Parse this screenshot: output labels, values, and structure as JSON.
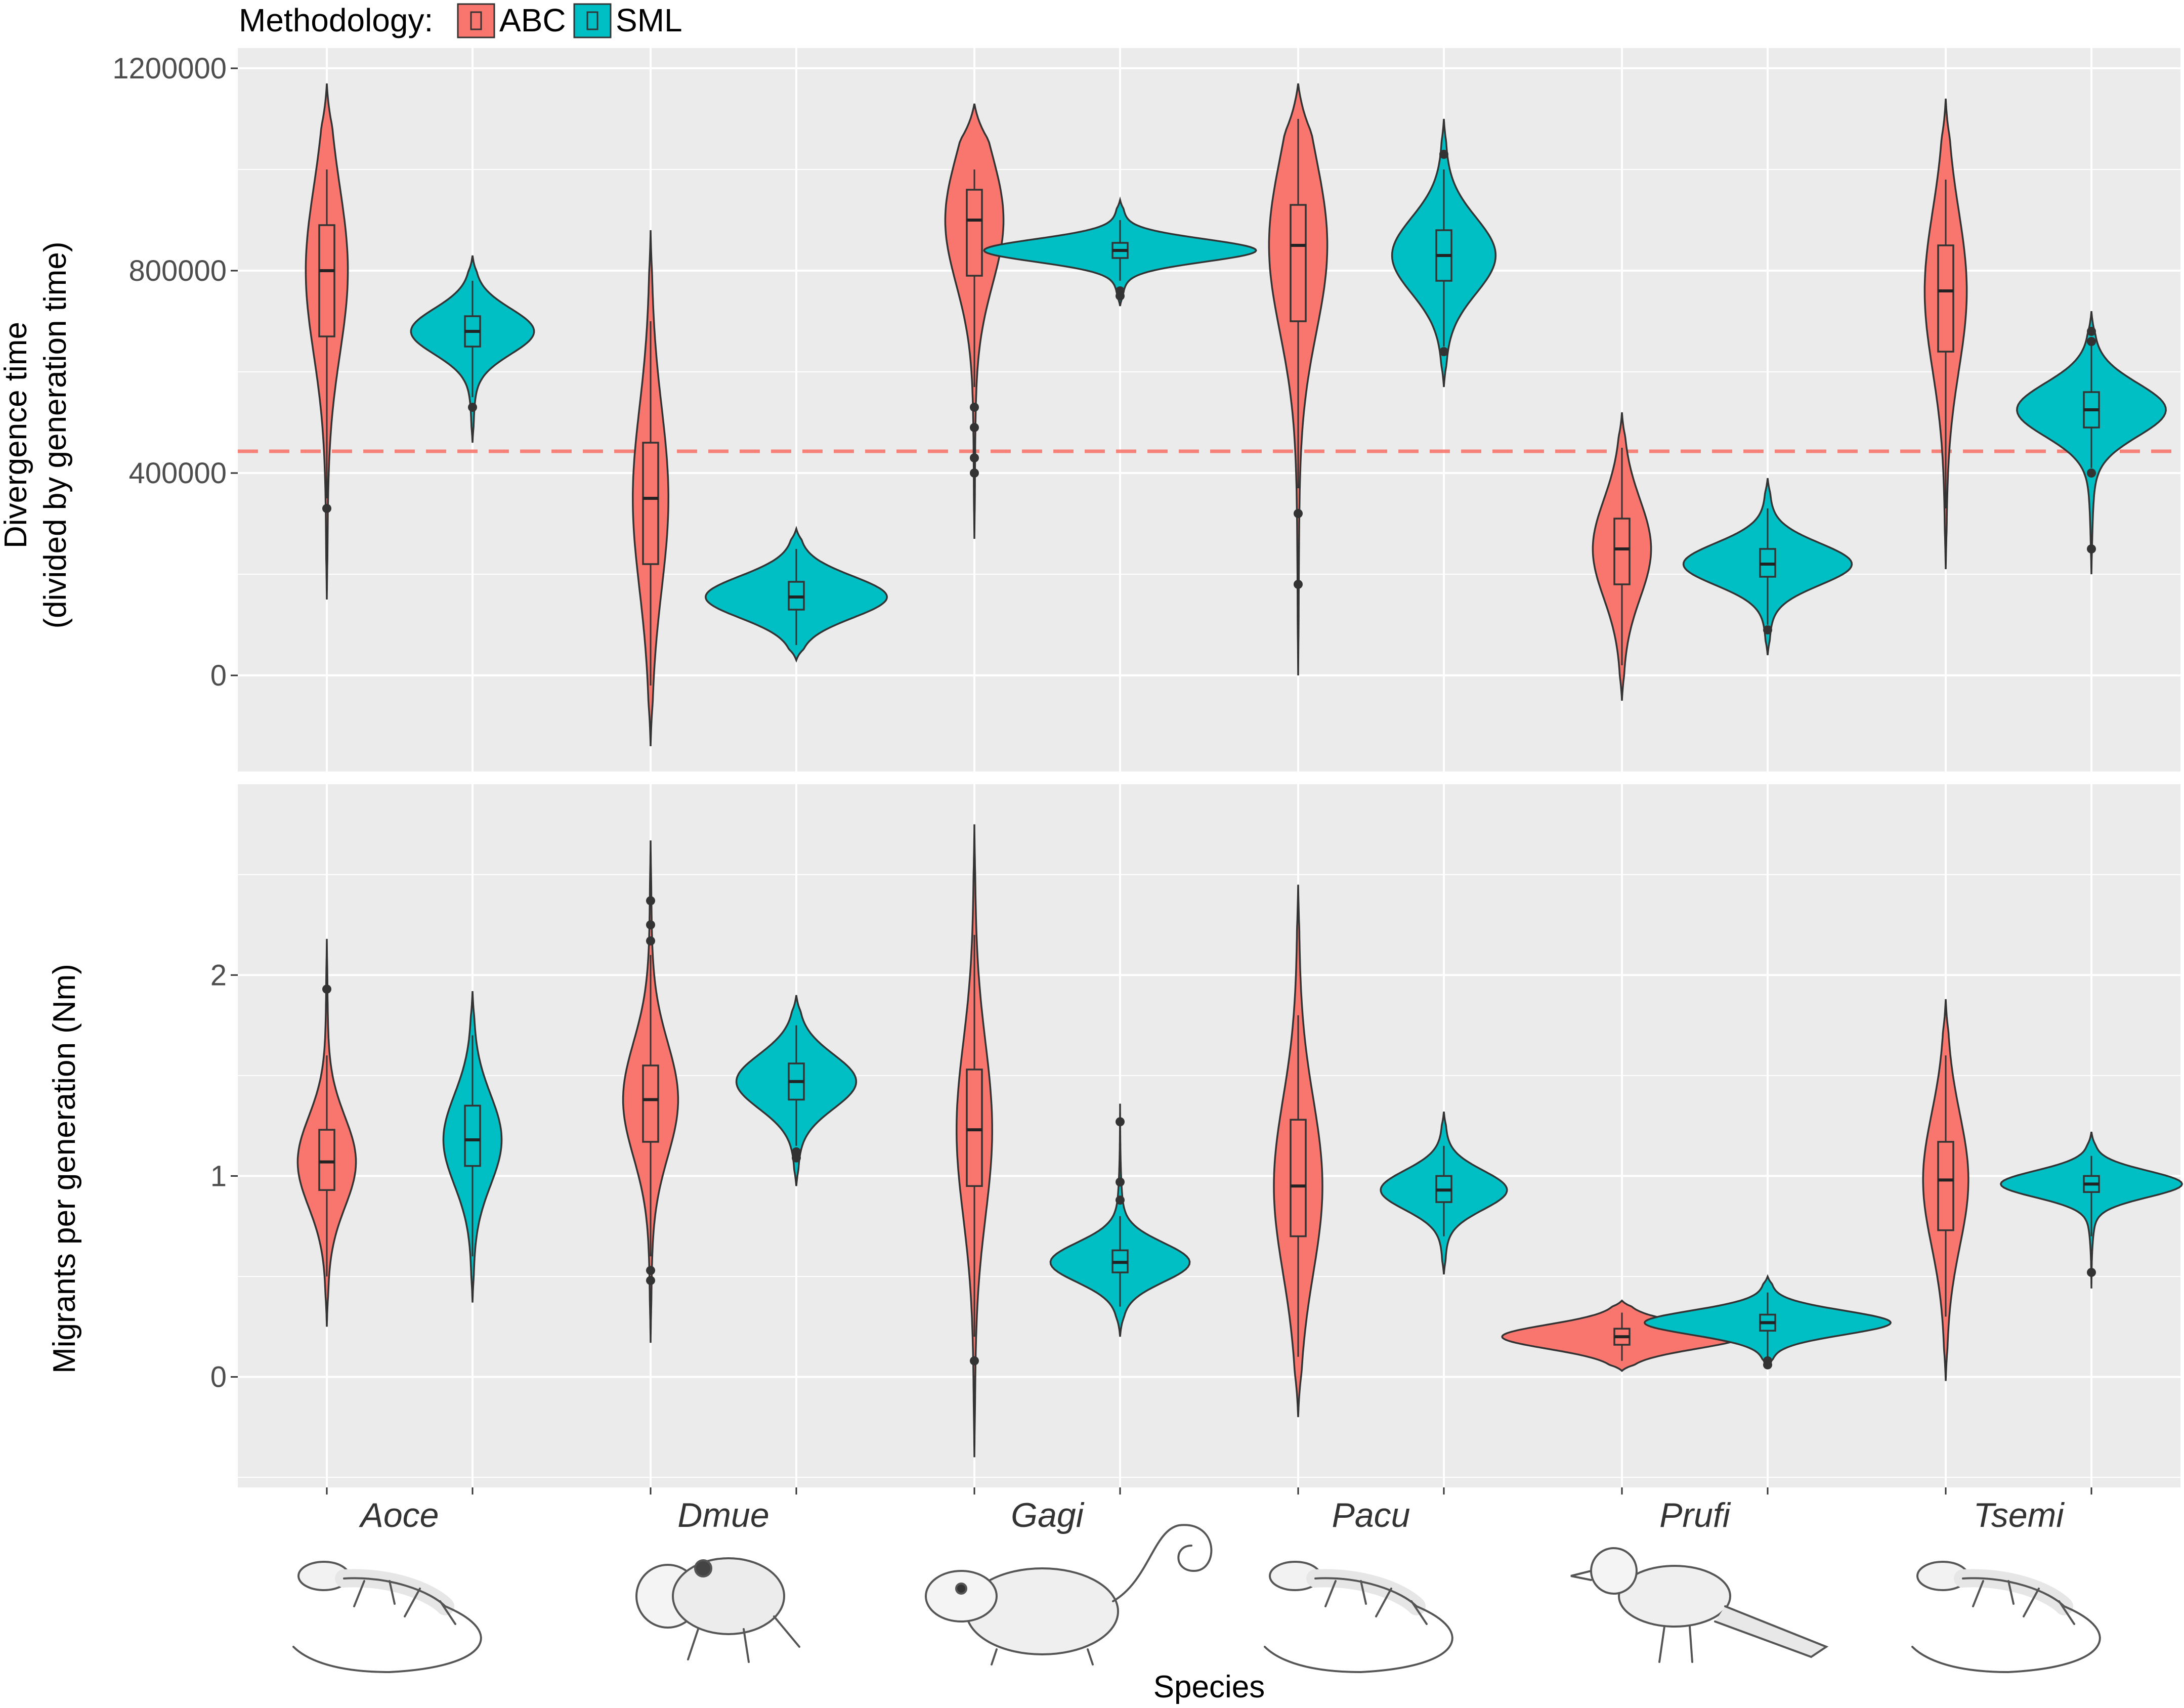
{
  "legend": {
    "title": "Methodology:",
    "items": [
      {
        "label": "ABC",
        "color": "#F8766D"
      },
      {
        "label": "SML",
        "color": "#00BFC4"
      }
    ]
  },
  "x_axis": {
    "title": "Species",
    "categories": [
      "Aoce",
      "Dmue",
      "Gagi",
      "Pacu",
      "Prufi",
      "Tsemi"
    ],
    "species_icons": [
      "lizard-icon",
      "frog-icon",
      "opossum-icon",
      "gecko-icon",
      "bird-icon",
      "lizard-icon"
    ]
  },
  "chart_data": [
    {
      "type": "violin",
      "panel": "top",
      "ylabel": "Divergence time\n(divided by generation time)",
      "ylim": [
        -190000,
        1240000
      ],
      "yticks": [
        0,
        400000,
        800000,
        1200000
      ],
      "ytick_labels": [
        "0",
        "400000",
        "800000",
        "1200000"
      ],
      "reference_line": {
        "y": 443000,
        "style": "dashed",
        "color": "#F8766D"
      },
      "series": [
        {
          "name": "ABC",
          "color": "#F8766D",
          "data": [
            {
              "category": "Aoce",
              "min": 150000,
              "q1": 670000,
              "median": 800000,
              "q3": 890000,
              "max": 1170000,
              "whisker_low": 350000,
              "whisker_high": 1000000,
              "half_width": 0.065,
              "outliers": [
                330000
              ]
            },
            {
              "category": "Dmue",
              "min": -140000,
              "q1": 220000,
              "median": 350000,
              "q3": 460000,
              "max": 880000,
              "whisker_low": -20000,
              "whisker_high": 700000,
              "half_width": 0.055,
              "outliers": []
            },
            {
              "category": "Gagi",
              "min": 270000,
              "q1": 790000,
              "median": 900000,
              "q3": 960000,
              "max": 1130000,
              "whisker_low": 570000,
              "whisker_high": 1000000,
              "half_width": 0.09,
              "outliers": [
                530000,
                490000,
                430000,
                400000
              ]
            },
            {
              "category": "Pacu",
              "min": 0,
              "q1": 700000,
              "median": 850000,
              "q3": 930000,
              "max": 1170000,
              "whisker_low": 370000,
              "whisker_high": 1100000,
              "half_width": 0.09,
              "outliers": [
                320000,
                180000
              ]
            },
            {
              "category": "Prufi",
              "min": -50000,
              "q1": 180000,
              "median": 250000,
              "q3": 310000,
              "max": 520000,
              "whisker_low": 20000,
              "whisker_high": 450000,
              "half_width": 0.09,
              "outliers": []
            },
            {
              "category": "Tsemi",
              "min": 210000,
              "q1": 640000,
              "median": 760000,
              "q3": 850000,
              "max": 1140000,
              "whisker_low": 330000,
              "whisker_high": 980000,
              "half_width": 0.065,
              "outliers": []
            }
          ]
        },
        {
          "name": "SML",
          "color": "#00BFC4",
          "data": [
            {
              "category": "Aoce",
              "min": 460000,
              "q1": 650000,
              "median": 680000,
              "q3": 710000,
              "max": 830000,
              "whisker_low": 550000,
              "whisker_high": 780000,
              "half_width": 0.19,
              "outliers": [
                530000
              ]
            },
            {
              "category": "Dmue",
              "min": 30000,
              "q1": 130000,
              "median": 155000,
              "q3": 185000,
              "max": 290000,
              "whisker_low": 60000,
              "whisker_high": 250000,
              "half_width": 0.28,
              "outliers": []
            },
            {
              "category": "Gagi",
              "min": 730000,
              "q1": 825000,
              "median": 840000,
              "q3": 855000,
              "max": 940000,
              "whisker_low": 780000,
              "whisker_high": 900000,
              "half_width": 0.42,
              "outliers": [
                760000,
                750000
              ]
            },
            {
              "category": "Pacu",
              "min": 570000,
              "q1": 780000,
              "median": 830000,
              "q3": 880000,
              "max": 1100000,
              "whisker_low": 650000,
              "whisker_high": 1000000,
              "half_width": 0.16,
              "outliers": [
                1030000,
                640000
              ]
            },
            {
              "category": "Prufi",
              "min": 40000,
              "q1": 195000,
              "median": 220000,
              "q3": 250000,
              "max": 390000,
              "whisker_low": 100000,
              "whisker_high": 330000,
              "half_width": 0.26,
              "outliers": [
                90000
              ]
            },
            {
              "category": "Tsemi",
              "min": 200000,
              "q1": 490000,
              "median": 525000,
              "q3": 560000,
              "max": 720000,
              "whisker_low": 410000,
              "whisker_high": 660000,
              "half_width": 0.23,
              "outliers": [
                680000,
                660000,
                400000,
                250000
              ]
            }
          ]
        }
      ]
    },
    {
      "type": "violin",
      "panel": "bottom",
      "ylabel": "Migrants per generation (Nm)",
      "ylim": [
        -0.55,
        2.95
      ],
      "yticks": [
        0,
        1,
        2
      ],
      "ytick_labels": [
        "0",
        "1",
        "2"
      ],
      "series": [
        {
          "name": "ABC",
          "color": "#F8766D",
          "data": [
            {
              "category": "Aoce",
              "min": 0.25,
              "q1": 0.93,
              "median": 1.07,
              "q3": 1.23,
              "max": 2.18,
              "whisker_low": 0.5,
              "whisker_high": 1.6,
              "half_width": 0.09,
              "outliers": [
                1.93
              ]
            },
            {
              "category": "Dmue",
              "min": 0.17,
              "q1": 1.17,
              "median": 1.38,
              "q3": 1.55,
              "max": 2.67,
              "whisker_low": 0.6,
              "whisker_high": 2.1,
              "half_width": 0.085,
              "outliers": [
                2.37,
                2.25,
                2.17,
                0.53,
                0.48
              ]
            },
            {
              "category": "Gagi",
              "min": -0.4,
              "q1": 0.95,
              "median": 1.23,
              "q3": 1.53,
              "max": 2.75,
              "whisker_low": 0.2,
              "whisker_high": 2.2,
              "half_width": 0.055,
              "outliers": [
                0.08
              ]
            },
            {
              "category": "Pacu",
              "min": -0.2,
              "q1": 0.7,
              "median": 0.95,
              "q3": 1.28,
              "max": 2.45,
              "whisker_low": 0.1,
              "whisker_high": 1.8,
              "half_width": 0.075,
              "outliers": []
            },
            {
              "category": "Prufi",
              "min": 0.03,
              "q1": 0.16,
              "median": 0.2,
              "q3": 0.24,
              "max": 0.38,
              "whisker_low": 0.08,
              "whisker_high": 0.32,
              "half_width": 0.37,
              "outliers": []
            },
            {
              "category": "Tsemi",
              "min": -0.02,
              "q1": 0.73,
              "median": 0.98,
              "q3": 1.17,
              "max": 1.88,
              "whisker_low": 0.3,
              "whisker_high": 1.6,
              "half_width": 0.07,
              "outliers": []
            }
          ]
        },
        {
          "name": "SML",
          "color": "#00BFC4",
          "data": [
            {
              "category": "Aoce",
              "min": 0.37,
              "q1": 1.05,
              "median": 1.18,
              "q3": 1.35,
              "max": 1.92,
              "whisker_low": 0.6,
              "whisker_high": 1.7,
              "half_width": 0.09,
              "outliers": []
            },
            {
              "category": "Dmue",
              "min": 0.95,
              "q1": 1.38,
              "median": 1.47,
              "q3": 1.56,
              "max": 1.9,
              "whisker_low": 1.15,
              "whisker_high": 1.75,
              "half_width": 0.185,
              "outliers": [
                1.12,
                1.09
              ]
            },
            {
              "category": "Gagi",
              "min": 0.2,
              "q1": 0.52,
              "median": 0.57,
              "q3": 0.63,
              "max": 1.36,
              "whisker_low": 0.35,
              "whisker_high": 0.8,
              "half_width": 0.215,
              "outliers": [
                1.27,
                0.97,
                0.88
              ]
            },
            {
              "category": "Pacu",
              "min": 0.51,
              "q1": 0.87,
              "median": 0.93,
              "q3": 1.0,
              "max": 1.32,
              "whisker_low": 0.7,
              "whisker_high": 1.15,
              "half_width": 0.195,
              "outliers": []
            },
            {
              "category": "Prufi",
              "min": 0.05,
              "q1": 0.23,
              "median": 0.27,
              "q3": 0.31,
              "max": 0.5,
              "whisker_low": 0.1,
              "whisker_high": 0.42,
              "half_width": 0.38,
              "outliers": [
                0.08,
                0.06
              ]
            },
            {
              "category": "Tsemi",
              "min": 0.44,
              "q1": 0.92,
              "median": 0.96,
              "q3": 1.0,
              "max": 1.22,
              "whisker_low": 0.7,
              "whisker_high": 1.1,
              "half_width": 0.28,
              "outliers": [
                0.52
              ]
            }
          ]
        }
      ]
    }
  ]
}
